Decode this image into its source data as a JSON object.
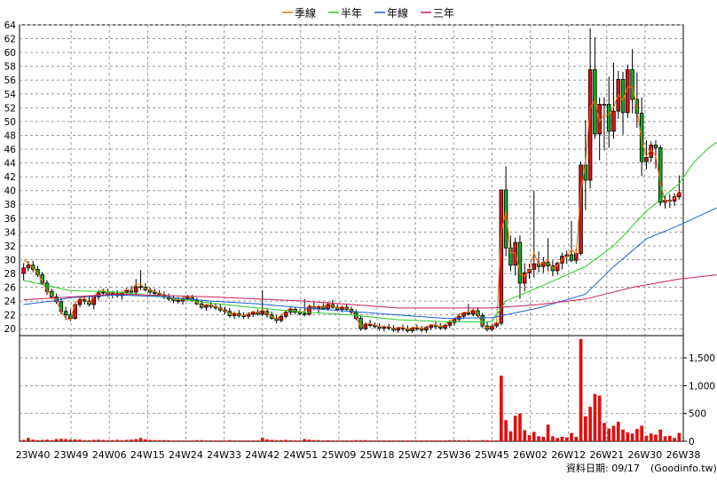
{
  "legend": [
    {
      "label": "季線",
      "color": "#ff6a00"
    },
    {
      "label": "半年",
      "color": "#22cc22"
    },
    {
      "label": "年線",
      "color": "#1f5fd6"
    },
    {
      "label": "三年",
      "color": "#cc1f5f"
    }
  ],
  "footer": {
    "date_text": "資料日期: 09/17",
    "source_text": "(Goodinfo.tw)"
  },
  "chart_data": {
    "type": "candlestick-volume",
    "price_axis": {
      "min": 19,
      "max": 64,
      "ticks": [
        20,
        22,
        24,
        26,
        28,
        30,
        32,
        34,
        36,
        38,
        40,
        42,
        44,
        46,
        48,
        50,
        52,
        54,
        56,
        58,
        60,
        62,
        64
      ]
    },
    "volume_axis": {
      "min": 0,
      "max": 1900,
      "ticks": [
        0,
        500,
        1000,
        1500
      ],
      "tick_labels": [
        "0",
        "500",
        "1,000",
        "1,500"
      ]
    },
    "x_labels": [
      "23W40",
      "23W49",
      "24W06",
      "24W15",
      "24W24",
      "24W33",
      "24W42",
      "24W51",
      "25W09",
      "25W18",
      "25W27",
      "25W36",
      "25W45",
      "26W02",
      "26W12",
      "26W21",
      "26W30",
      "26W38"
    ],
    "candles": [
      [
        28,
        29.5,
        27,
        28.8,
        30,
        25
      ],
      [
        28.8,
        29.8,
        28.3,
        29.2,
        29.5,
        60
      ],
      [
        29.2,
        29.8,
        28.2,
        28.6,
        28.8,
        30
      ],
      [
        28.6,
        29.1,
        27.5,
        27.8,
        28,
        20
      ],
      [
        27.8,
        28.2,
        26.3,
        26.6,
        26.8,
        25
      ],
      [
        26.6,
        27,
        24.9,
        25.4,
        25.5,
        30
      ],
      [
        25.4,
        25.8,
        24.3,
        24.6,
        24.8,
        20
      ],
      [
        24.6,
        25.1,
        23.6,
        23.9,
        24,
        40
      ],
      [
        23.9,
        24.4,
        22.1,
        22.5,
        22.5,
        45
      ],
      [
        22.5,
        23.2,
        21.3,
        22,
        21.5,
        40
      ],
      [
        22,
        22.8,
        21.1,
        21.5,
        21.3,
        30
      ],
      [
        21.5,
        23.8,
        21.3,
        23.5,
        23.7,
        35
      ],
      [
        23.5,
        24.6,
        23.1,
        24.2,
        24.4,
        30
      ],
      [
        24.2,
        24.8,
        23.5,
        24,
        24.4,
        20
      ],
      [
        24,
        24.6,
        23.2,
        23.5,
        23.7,
        20
      ],
      [
        23.5,
        24.8,
        22.8,
        24.6,
        24.7,
        25
      ],
      [
        24.6,
        25.6,
        24.1,
        25.2,
        25.4,
        30
      ],
      [
        25.2,
        25.8,
        24.7,
        25.3,
        25.6,
        25
      ],
      [
        25.3,
        25.8,
        24.6,
        24.9,
        25.2,
        20
      ],
      [
        24.9,
        25.5,
        24.4,
        25.1,
        25.3,
        20
      ],
      [
        25.1,
        25.6,
        24.5,
        24.8,
        25,
        25
      ],
      [
        24.8,
        25.4,
        24.2,
        25.2,
        25.3,
        20
      ],
      [
        25.2,
        25.9,
        24.8,
        25.5,
        25.7,
        25
      ],
      [
        25.5,
        26.2,
        24.9,
        25.3,
        25.5,
        30
      ],
      [
        25.3,
        27.2,
        25,
        26.1,
        26.5,
        40
      ],
      [
        26.1,
        28.5,
        25.6,
        26,
        26.4,
        60
      ],
      [
        26,
        26.6,
        25.4,
        25.6,
        25.8,
        35
      ],
      [
        25.6,
        26,
        25,
        25.3,
        25.6,
        25
      ],
      [
        25.3,
        25.8,
        24.8,
        25.1,
        25.4,
        20
      ],
      [
        25.1,
        25.6,
        24.6,
        24.9,
        25.1,
        20
      ],
      [
        24.9,
        25.4,
        24.3,
        24.6,
        24.8,
        20
      ],
      [
        24.6,
        25.1,
        24,
        24.3,
        24.5,
        20
      ],
      [
        24.3,
        24.8,
        23.7,
        24.1,
        24.3,
        15
      ],
      [
        24.1,
        24.6,
        23.6,
        24,
        24.2,
        15
      ],
      [
        24,
        24.6,
        23.5,
        24.4,
        24.5,
        15
      ],
      [
        24.4,
        24.9,
        24,
        24.5,
        24.7,
        15
      ],
      [
        24.5,
        24.9,
        23.9,
        24.1,
        24.3,
        15
      ],
      [
        24.1,
        24.5,
        23.4,
        23.6,
        23.8,
        20
      ],
      [
        23.6,
        24.1,
        22.8,
        23.1,
        23.3,
        20
      ],
      [
        23.1,
        23.6,
        22.6,
        23.4,
        23.5,
        15
      ],
      [
        23.4,
        23.9,
        22.9,
        23.2,
        23.4,
        15
      ],
      [
        23.2,
        23.7,
        22.7,
        23,
        23.2,
        15
      ],
      [
        23,
        23.5,
        22.4,
        22.7,
        22.9,
        15
      ],
      [
        22.7,
        23.2,
        22.1,
        22.5,
        22.6,
        15
      ],
      [
        22.5,
        23,
        21.6,
        21.9,
        22.1,
        20
      ],
      [
        21.9,
        22.5,
        21.4,
        22.2,
        22.3,
        15
      ],
      [
        22.2,
        22.7,
        21.6,
        21.9,
        22,
        15
      ],
      [
        21.9,
        22.4,
        21.4,
        21.8,
        21.9,
        15
      ],
      [
        21.8,
        22.4,
        21.4,
        22.1,
        22.2,
        15
      ],
      [
        22.1,
        22.6,
        21.7,
        22.4,
        22.5,
        15
      ],
      [
        22.4,
        22.8,
        21.9,
        22.1,
        22.3,
        15
      ],
      [
        22.1,
        25.6,
        21.8,
        22.5,
        22.8,
        60
      ],
      [
        22.5,
        23,
        21.6,
        22,
        22.2,
        35
      ],
      [
        22,
        22.5,
        21.3,
        21.5,
        21.7,
        25
      ],
      [
        21.5,
        22,
        20.8,
        21.2,
        21.4,
        20
      ],
      [
        21.2,
        22.1,
        20.9,
        21.8,
        22,
        20
      ],
      [
        21.8,
        22.7,
        21.5,
        22.4,
        22.6,
        25
      ],
      [
        22.4,
        23.2,
        22,
        22.8,
        23,
        20
      ],
      [
        22.8,
        23.1,
        22.1,
        22.4,
        22.6,
        15
      ],
      [
        22.4,
        22.8,
        21.9,
        22.2,
        22.4,
        15
      ],
      [
        22.2,
        24.3,
        21.8,
        22.1,
        22.5,
        40
      ],
      [
        22.1,
        23.5,
        21.9,
        23.2,
        23.4,
        30
      ],
      [
        23.2,
        23.8,
        22.7,
        22.9,
        23.1,
        20
      ],
      [
        22.9,
        23.4,
        22.2,
        23.2,
        23.3,
        20
      ],
      [
        23.2,
        23.7,
        22.7,
        22.9,
        23.1,
        15
      ],
      [
        22.9,
        23.9,
        22.6,
        23.5,
        23.7,
        20
      ],
      [
        23.5,
        24.2,
        22.9,
        23.1,
        23.3,
        15
      ],
      [
        23.1,
        23.5,
        22.5,
        22.8,
        23,
        15
      ],
      [
        22.8,
        23.4,
        22.4,
        23.1,
        23.2,
        15
      ],
      [
        23.1,
        23.5,
        22.6,
        22.8,
        23,
        15
      ],
      [
        22.8,
        23.2,
        22.1,
        22.4,
        22.6,
        15
      ],
      [
        22.4,
        22.8,
        21.2,
        21.5,
        21.7,
        20
      ],
      [
        21.5,
        21.9,
        19.7,
        20,
        20.3,
        20
      ],
      [
        20,
        20.9,
        19.8,
        20.6,
        20.8,
        20
      ],
      [
        20.6,
        21.3,
        20.2,
        20.5,
        20.7,
        15
      ],
      [
        20.5,
        20.9,
        20,
        20.3,
        20.5,
        15
      ],
      [
        20.3,
        20.8,
        19.7,
        20.1,
        20.3,
        15
      ],
      [
        20.1,
        20.5,
        19.6,
        20.2,
        20.3,
        15
      ],
      [
        20.2,
        20.7,
        19.8,
        20.1,
        20.3,
        15
      ],
      [
        20.1,
        20.5,
        19.5,
        19.8,
        20,
        15
      ],
      [
        19.8,
        20.3,
        19.4,
        20.1,
        20.2,
        15
      ],
      [
        20.1,
        20.6,
        19.6,
        20,
        20.2,
        15
      ],
      [
        20,
        20.5,
        19.4,
        19.7,
        19.9,
        15
      ],
      [
        19.7,
        20.3,
        19.4,
        20.1,
        20.2,
        15
      ],
      [
        20.1,
        20.6,
        19.7,
        20,
        20.2,
        15
      ],
      [
        20,
        20.4,
        19.5,
        19.8,
        20,
        15
      ],
      [
        19.8,
        20.4,
        19.4,
        20.2,
        20.3,
        15
      ],
      [
        20.2,
        20.7,
        19.8,
        20.5,
        20.6,
        15
      ],
      [
        20.5,
        21,
        20,
        20.3,
        20.5,
        15
      ],
      [
        20.3,
        20.8,
        19.8,
        20.1,
        20.3,
        15
      ],
      [
        20.1,
        20.7,
        19.8,
        20.5,
        20.6,
        15
      ],
      [
        20.5,
        21.3,
        20.1,
        20.9,
        21.1,
        20
      ],
      [
        20.9,
        21.6,
        20.5,
        21.4,
        21.5,
        20
      ],
      [
        21.4,
        22.2,
        21,
        21.8,
        22,
        20
      ],
      [
        21.8,
        22.4,
        21.4,
        22.3,
        22.4,
        15
      ],
      [
        22.3,
        23.6,
        21.9,
        22.1,
        22.4,
        20
      ],
      [
        22.1,
        22.9,
        21.8,
        22.6,
        22.8,
        15
      ],
      [
        22.6,
        23.1,
        21.7,
        21.9,
        22.1,
        15
      ],
      [
        21.9,
        22.3,
        20.1,
        20.4,
        20.6,
        20
      ],
      [
        20.4,
        21,
        19.6,
        19.9,
        20.1,
        20
      ],
      [
        19.9,
        20.6,
        19.6,
        20.4,
        20.5,
        15
      ],
      [
        20.4,
        21,
        20.1,
        20.8,
        20.9,
        15
      ],
      [
        20.8,
        40.1,
        20.5,
        40.1,
        34,
        1180
      ],
      [
        40.1,
        43.5,
        30.5,
        31.7,
        37,
        380
      ],
      [
        31.7,
        33.5,
        28.3,
        29.2,
        31,
        180
      ],
      [
        29.2,
        33.2,
        27.7,
        32.5,
        31,
        460
      ],
      [
        32.5,
        33.5,
        24.3,
        26.6,
        28,
        500
      ],
      [
        26.6,
        29.5,
        25.4,
        28.1,
        27.5,
        200
      ],
      [
        28.1,
        29.4,
        27.2,
        28.6,
        28.6,
        110
      ],
      [
        28.6,
        40,
        27.4,
        29.4,
        31,
        170
      ],
      [
        29.4,
        31.2,
        28.2,
        29,
        29.3,
        90
      ],
      [
        29,
        30.4,
        28.1,
        29.6,
        29.6,
        80
      ],
      [
        29.6,
        33.1,
        28.3,
        29.1,
        30,
        300
      ],
      [
        29.1,
        29.9,
        27.6,
        28.4,
        28.7,
        90
      ],
      [
        28.4,
        29.7,
        27.8,
        29.5,
        29.2,
        60
      ],
      [
        29.5,
        31,
        28.6,
        30.5,
        30,
        80
      ],
      [
        30.5,
        31.3,
        29.4,
        30.7,
        30.4,
        70
      ],
      [
        30.7,
        35.6,
        29.6,
        29.9,
        31.5,
        150
      ],
      [
        29.9,
        31.6,
        29.4,
        30.9,
        30.8,
        80
      ],
      [
        30.9,
        44.2,
        30.6,
        43.7,
        40,
        1840
      ],
      [
        43.7,
        50.2,
        37.2,
        41.5,
        44,
        450
      ],
      [
        41.5,
        63.5,
        40.3,
        57.5,
        52,
        620
      ],
      [
        57.5,
        62.2,
        47.5,
        48.2,
        53,
        850
      ],
      [
        48.2,
        53.5,
        44.4,
        52.5,
        50,
        820
      ],
      [
        52.5,
        53.5,
        45.8,
        52.5,
        51,
        330
      ],
      [
        52.5,
        56.5,
        46.2,
        48.6,
        51,
        230
      ],
      [
        48.6,
        58.5,
        47.5,
        51.5,
        52,
        280
      ],
      [
        51.5,
        57.3,
        50.4,
        56.1,
        54,
        350
      ],
      [
        56.1,
        57.2,
        48.1,
        51.3,
        53,
        210
      ],
      [
        51.3,
        58.2,
        50.5,
        57.5,
        55,
        160
      ],
      [
        57.5,
        60.5,
        51.2,
        53.2,
        55,
        140
      ],
      [
        53.2,
        57.1,
        49.1,
        51.2,
        52,
        220
      ],
      [
        51.2,
        53.5,
        42.1,
        44.2,
        47,
        280
      ],
      [
        44.2,
        47.3,
        43.1,
        44.8,
        45,
        100
      ],
      [
        44.8,
        47.1,
        44.1,
        46.6,
        46,
        140
      ],
      [
        46.6,
        47.3,
        43.2,
        46.2,
        45,
        120
      ],
      [
        46.2,
        46.6,
        37.8,
        38.3,
        41,
        210
      ],
      [
        38.3,
        39.2,
        37.4,
        38.6,
        38.5,
        90
      ],
      [
        38.6,
        39.5,
        37.5,
        38.5,
        38.5,
        100
      ],
      [
        38.5,
        39.6,
        37.8,
        39.1,
        38.9,
        60
      ],
      [
        39.1,
        42.2,
        38.7,
        39.7,
        40,
        150
      ]
    ],
    "ma_semiannual_points": [
      [
        0,
        27
      ],
      [
        10,
        25.5
      ],
      [
        20,
        25.3
      ],
      [
        30,
        24.6
      ],
      [
        40,
        23.7
      ],
      [
        50,
        23
      ],
      [
        60,
        22.4
      ],
      [
        70,
        22
      ],
      [
        80,
        21.3
      ],
      [
        90,
        21
      ],
      [
        100,
        21
      ],
      [
        103,
        24
      ],
      [
        110,
        26
      ],
      [
        120,
        29
      ],
      [
        126,
        32
      ],
      [
        133,
        37
      ],
      [
        140,
        41
      ],
      [
        143,
        44
      ],
      [
        146,
        46
      ],
      [
        148,
        47
      ]
    ],
    "ma_annual_points": [
      [
        0,
        23.5
      ],
      [
        6,
        24
      ],
      [
        10,
        24.5
      ],
      [
        20,
        24.9
      ],
      [
        30,
        24.6
      ],
      [
        40,
        24
      ],
      [
        50,
        23.6
      ],
      [
        60,
        23
      ],
      [
        70,
        22.5
      ],
      [
        80,
        22
      ],
      [
        90,
        21.5
      ],
      [
        100,
        21.6
      ],
      [
        110,
        23
      ],
      [
        120,
        25
      ],
      [
        126,
        29
      ],
      [
        133,
        33
      ],
      [
        140,
        35
      ],
      [
        148,
        37.5
      ]
    ],
    "ma_3y_points": [
      [
        0,
        24.2
      ],
      [
        20,
        25
      ],
      [
        40,
        24.6
      ],
      [
        60,
        24
      ],
      [
        80,
        23
      ],
      [
        100,
        23
      ],
      [
        110,
        23.5
      ],
      [
        120,
        24.3
      ],
      [
        130,
        26
      ],
      [
        140,
        27.2
      ],
      [
        148,
        27.8
      ]
    ]
  }
}
